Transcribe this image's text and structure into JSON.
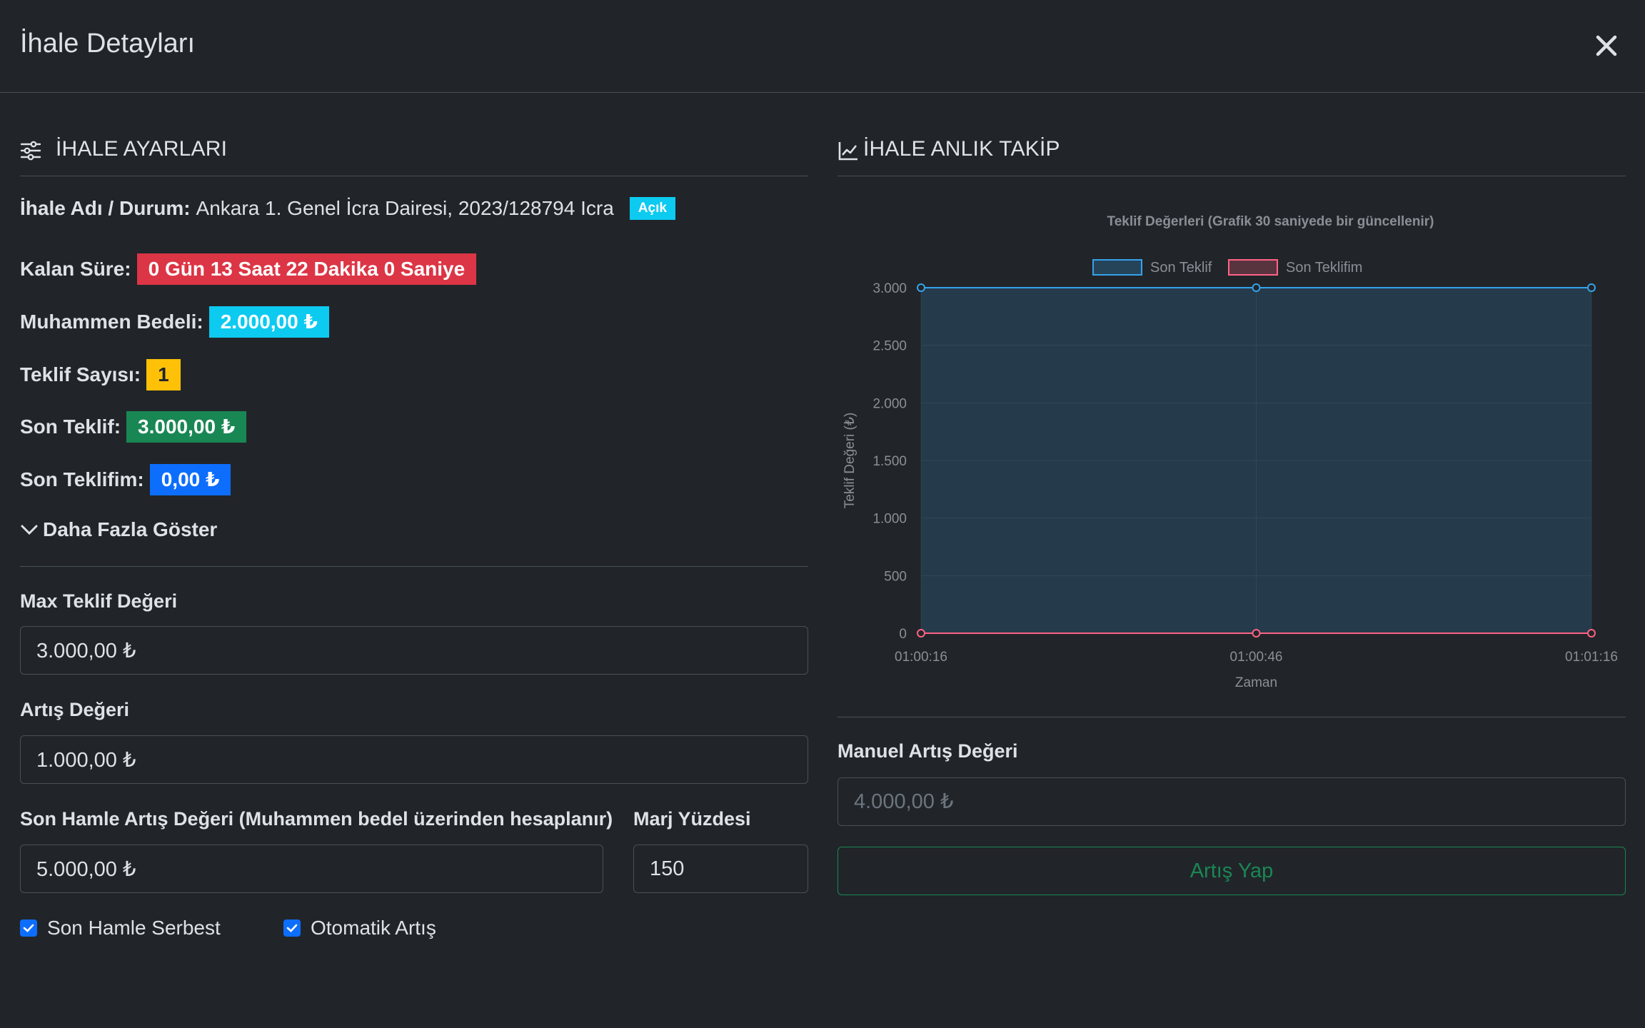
{
  "modal": {
    "title": "İhale Detayları"
  },
  "settings": {
    "heading": "İHALE AYARLARI",
    "name_label": "İhale Adı / Durum:",
    "name_value": "Ankara 1. Genel İcra Dairesi, 2023/128794 Icra",
    "status_badge": "Açık",
    "remaining_label": "Kalan Süre:",
    "remaining_value": "0 Gün 13 Saat 22 Dakika 0 Saniye",
    "estimate_label": "Muhammen Bedeli:",
    "estimate_value": "2.000,00 ₺",
    "bid_count_label": "Teklif Sayısı:",
    "bid_count_value": "1",
    "last_bid_label": "Son Teklif:",
    "last_bid_value": "3.000,00 ₺",
    "my_last_bid_label": "Son Teklifim:",
    "my_last_bid_value": "0,00 ₺",
    "show_more": "Daha Fazla Göster",
    "max_bid_label": "Max Teklif Değeri",
    "max_bid_value": "3.000,00 ₺",
    "increment_label": "Artış Değeri",
    "increment_value": "1.000,00 ₺",
    "last_move_label": "Son Hamle Artış Değeri (Muhammen bedel üzerinden hesaplanır)",
    "last_move_value": "5.000,00 ₺",
    "margin_label": "Marj Yüzdesi",
    "margin_value": "150",
    "check_last_move_free": "Son Hamle Serbest",
    "check_auto_increment": "Otomatik Artış"
  },
  "tracking": {
    "heading": "İHALE ANLIK TAKİP",
    "manual_label": "Manuel Artış Değeri",
    "manual_placeholder": "4.000,00 ₺",
    "increment_button": "Artış Yap"
  },
  "colors": {
    "series_last_bid": "#36a2eb",
    "series_my_bid": "#ff6384",
    "success": "#198754"
  },
  "chart_data": {
    "type": "area",
    "title": "Teklif Değerleri (Grafik 30 saniyede bir güncellenir)",
    "xlabel": "Zaman",
    "ylabel": "Teklif Değeri (₺)",
    "x": [
      "01:00:16",
      "01:00:46",
      "01:01:16"
    ],
    "ylim": [
      0,
      3000
    ],
    "yticks": [
      0,
      500,
      1000,
      1500,
      2000,
      2500,
      3000
    ],
    "ytick_labels": [
      "0",
      "500",
      "1.000",
      "1.500",
      "2.000",
      "2.500",
      "3.000"
    ],
    "legend_position": "top",
    "grid": true,
    "series": [
      {
        "name": "Son Teklif",
        "values": [
          3000,
          3000,
          3000
        ],
        "color": "#36a2eb",
        "fill": true
      },
      {
        "name": "Son Teklifim",
        "values": [
          0,
          0,
          0
        ],
        "color": "#ff6384",
        "fill": true
      }
    ]
  }
}
